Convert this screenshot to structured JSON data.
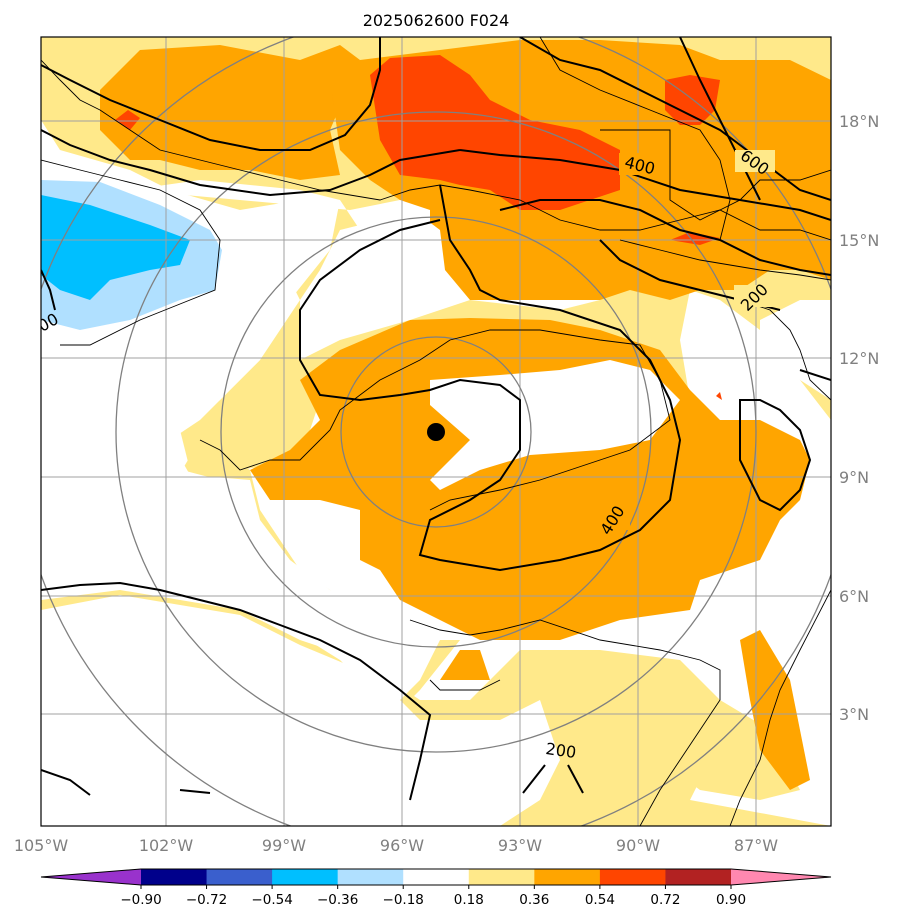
{
  "title": "2025062600 F024",
  "lon_labels": [
    "105°W",
    "102°W",
    "99°W",
    "96°W",
    "93°W",
    "90°W",
    "87°W"
  ],
  "lat_labels": [
    "18°N",
    "15°N",
    "12°N",
    "9°N",
    "6°N",
    "3°N"
  ],
  "contour_labels": [
    "400",
    "600",
    "200",
    "400",
    "200",
    "00"
  ],
  "colorbar": {
    "ticks": [
      "−0.90",
      "−0.72",
      "−0.54",
      "−0.36",
      "−0.18",
      "0.18",
      "0.36",
      "0.54",
      "0.72",
      "0.90"
    ],
    "colors": [
      "#9932cc",
      "#00008b",
      "#3a5fcd",
      "#00bfff",
      "#b0e0ff",
      "#ffffff",
      "#ffe98a",
      "#ffa500",
      "#ff4500",
      "#b22222",
      "#ff88b0"
    ]
  },
  "colors": {
    "light_yellow": "#ffe98a",
    "orange": "#ffa500",
    "red_orange": "#ff4500",
    "light_blue": "#b0e0ff",
    "deep_sky_blue": "#00bfff",
    "grid": "#a0a0a0",
    "range_rings": "#808080"
  },
  "center_marker": "storm-center-dot"
}
